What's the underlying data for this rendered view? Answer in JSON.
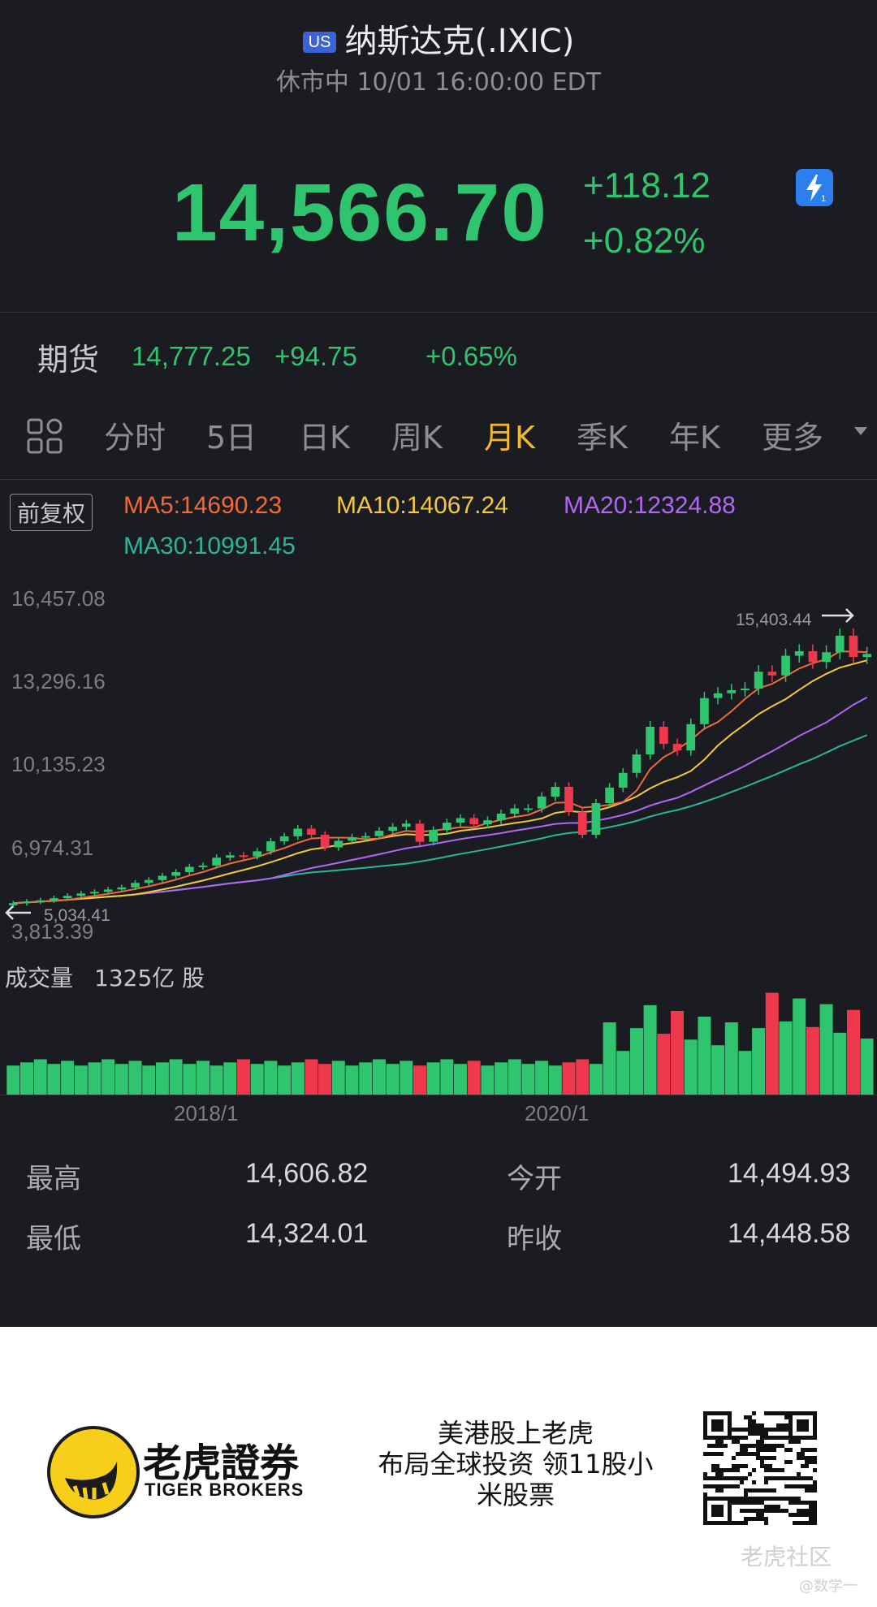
{
  "header": {
    "market_badge": "US",
    "title": "纳斯达克(.IXIC)",
    "status": "休市中 10/01 16:00:00 EDT"
  },
  "quote": {
    "price": "14,566.70",
    "change": "+118.12",
    "change_pct": "+0.82%",
    "up_color": "#2fc46e"
  },
  "futures": {
    "label": "期货",
    "price": "14,777.25",
    "change": "+94.75",
    "change_pct": "+0.65%"
  },
  "tabs": [
    "分时",
    "5日",
    "日K",
    "周K",
    "月K",
    "季K",
    "年K",
    "更多"
  ],
  "active_tab": "月K",
  "indicators": {
    "adjust_label": "前复权",
    "ma5": "MA5:14690.23",
    "ma10": "MA10:14067.24",
    "ma20": "MA20:12324.88",
    "ma30": "MA30:10991.45",
    "colors": {
      "ma5": "#f06a38",
      "ma10": "#f3c83a",
      "ma20": "#b067f2",
      "ma30": "#2bb59a"
    }
  },
  "chart_data": {
    "type": "candlestick",
    "period": "monthly",
    "y_ticks": [
      "16,457.08",
      "13,296.16",
      "10,135.23",
      "6,974.31",
      "3,813.39"
    ],
    "x_ticks": [
      "2018/1",
      "2020/1"
    ],
    "high_marker": "15,403.44",
    "low_marker": "5,034.41",
    "closes": [
      5100,
      5160,
      5210,
      5290,
      5380,
      5470,
      5530,
      5620,
      5700,
      5870,
      5980,
      6140,
      6280,
      6480,
      6530,
      6830,
      6920,
      6880,
      7070,
      7450,
      7640,
      7930,
      7700,
      7220,
      7470,
      7600,
      7650,
      7850,
      8000,
      8120,
      7430,
      7880,
      8160,
      8330,
      8100,
      8250,
      8500,
      8700,
      8700,
      9150,
      9520,
      8570,
      7700,
      8900,
      9490,
      10050,
      10750,
      11800,
      11150,
      10900,
      11900,
      12890,
      13070,
      13190,
      13250,
      13890,
      13750,
      14500,
      14670,
      14260,
      14630,
      15260,
      14450,
      14566
    ],
    "volume_label": "成交量",
    "volume_value": "1325亿 股"
  },
  "stats": {
    "high_label": "最高",
    "high": "14,606.82",
    "open_label": "今开",
    "open": "14,494.93",
    "low_label": "最低",
    "low": "14,324.01",
    "prev_close_label": "昨收",
    "prev_close": "14,448.58"
  },
  "footer": {
    "brand_cn": "老虎證券",
    "brand_en": "TIGER BROKERS",
    "slogan_line1": "美港股上老虎",
    "slogan_line2": "布局全球投资 领11股小",
    "slogan_line3": "米股票",
    "watermark": "老虎社区",
    "watermark_user": "@数学一"
  }
}
